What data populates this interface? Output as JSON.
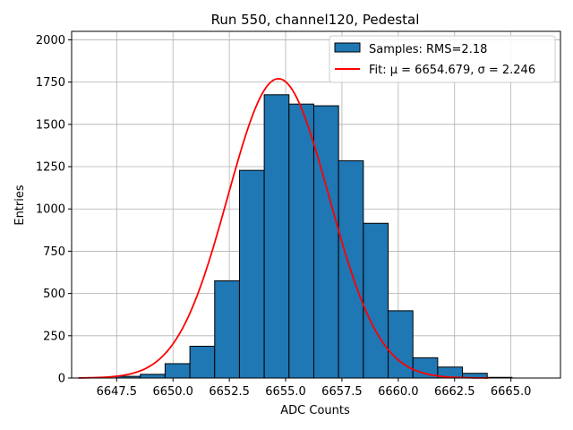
{
  "chart_data": {
    "type": "bar",
    "title": "Run 550, channel120, Pedestal",
    "xlabel": "ADC Counts",
    "ylabel": "Entries",
    "xlim": [
      6645.5,
      6667.2
    ],
    "ylim": [
      0,
      2050
    ],
    "xticks": [
      "6647.5",
      "6650.0",
      "6652.5",
      "6655.0",
      "6657.5",
      "6660.0",
      "6662.5",
      "6665.0"
    ],
    "yticks": [
      "0",
      "250",
      "500",
      "750",
      "1000",
      "1250",
      "1500",
      "1750",
      "2000"
    ],
    "grid": true,
    "legend_position": "top-right",
    "bin_width": 1.1,
    "bins": [
      {
        "x_start": 6647.45,
        "value": 10
      },
      {
        "x_start": 6648.55,
        "value": 22
      },
      {
        "x_start": 6649.65,
        "value": 85
      },
      {
        "x_start": 6650.75,
        "value": 188
      },
      {
        "x_start": 6651.85,
        "value": 575
      },
      {
        "x_start": 6652.95,
        "value": 1228
      },
      {
        "x_start": 6654.05,
        "value": 1675
      },
      {
        "x_start": 6655.15,
        "value": 1620
      },
      {
        "x_start": 6656.25,
        "value": 1610
      },
      {
        "x_start": 6657.35,
        "value": 1285
      },
      {
        "x_start": 6658.45,
        "value": 915
      },
      {
        "x_start": 6659.55,
        "value": 398
      },
      {
        "x_start": 6660.65,
        "value": 120
      },
      {
        "x_start": 6661.75,
        "value": 65
      },
      {
        "x_start": 6662.85,
        "value": 28
      },
      {
        "x_start": 6663.95,
        "value": 4
      }
    ],
    "fit": {
      "mu": 6654.679,
      "sigma": 2.246,
      "amplitude": 1770,
      "x_range": [
        6645.8,
        6664.0
      ],
      "color": "#ff0000"
    },
    "bar_color": "#1f77b4",
    "bar_edge_color": "#000000",
    "legend": {
      "samples_label": "Samples: RMS=2.18",
      "fit_label": "Fit: μ = 6654.679, σ = 2.246"
    }
  }
}
